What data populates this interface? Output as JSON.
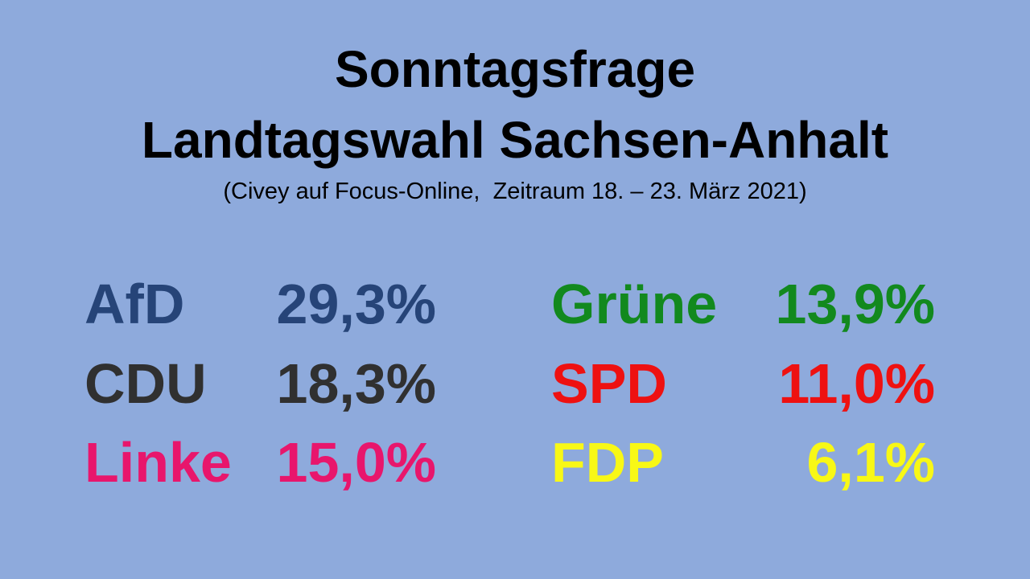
{
  "header": {
    "title_line1": "Sonntagsfrage",
    "title_line2": "Landtagswahl Sachsen-Anhalt",
    "subtitle": "(Civey auf Focus-Online,  Zeitraum 18. – 23. März 2021)"
  },
  "columns": [
    [
      {
        "party": "AfD",
        "result": "29,3%",
        "color": "#264478"
      },
      {
        "party": "CDU",
        "result": "18,3%",
        "color": "#303030"
      },
      {
        "party": "Linke",
        "result": "15,0%",
        "color": "#e8166c"
      }
    ],
    [
      {
        "party": "Grüne",
        "result": "13,9%",
        "color": "#12891e"
      },
      {
        "party": "SPD",
        "result": "11,0%",
        "color": "#ee1111"
      },
      {
        "party": "FDP",
        "result": "6,1%",
        "color": "#f8f816"
      }
    ]
  ]
}
